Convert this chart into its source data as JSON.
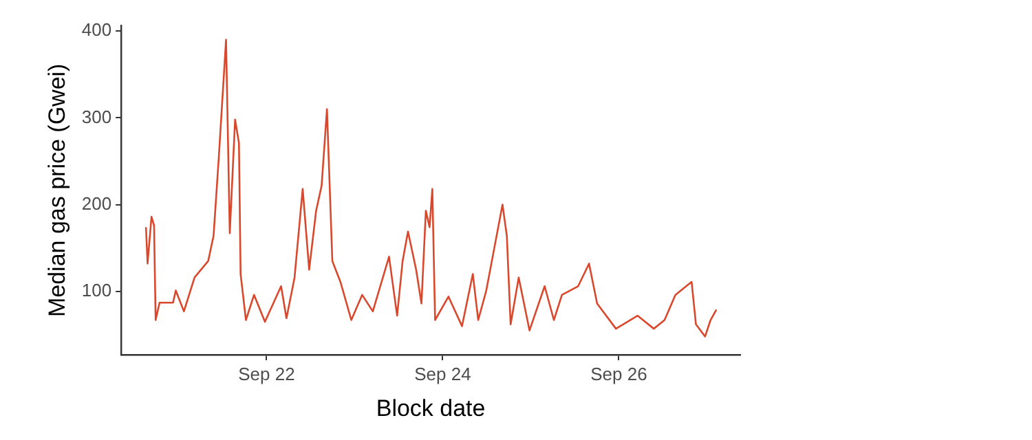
{
  "chart_data": {
    "type": "line",
    "xlabel": "Block date",
    "ylabel": "Median gas price (Gwei)",
    "xlim": [
      "--09-20T08:24",
      "--09-27T09:06"
    ],
    "xticks": [
      {
        "value": "--09-22",
        "label": "Sep 22"
      },
      {
        "value": "--09-24",
        "label": "Sep 24"
      },
      {
        "value": "--09-26",
        "label": "Sep 26"
      }
    ],
    "ylim": [
      27,
      406
    ],
    "yticks": [
      100,
      200,
      300,
      400
    ],
    "series": [
      {
        "color": "#d9482c",
        "x": [
          "--09-20T15:09",
          "--09-20T15:35",
          "--09-20T16:39",
          "--09-20T17:21",
          "--09-20T17:47",
          "--09-20T18:51",
          "--09-20T22:31",
          "--09-20T23:16",
          "--09-21T01:29",
          "--09-21T04:23",
          "--09-21T08:06",
          "--09-21T09:34",
          "--09-21T11:01",
          "--09-21T12:58",
          "--09-21T13:59",
          "--09-21T15:26",
          "--09-21T16:29",
          "--09-21T16:56",
          "--09-21T18:23",
          "--09-21T20:36",
          "--09-21T23:34",
          "--09-22T03:58",
          "--09-22T05:26",
          "--09-22T07:38",
          "--09-22T09:51",
          "--09-22T11:37",
          "--09-22T13:31",
          "--09-22T15:01",
          "--09-22T16:28",
          "--09-22T17:56",
          "--09-22T20:08",
          "--09-22T23:06",
          "--09-23T02:03",
          "--09-23T04:58",
          "--09-23T09:23",
          "--09-23T11:35",
          "--09-23T13:05",
          "--09-23T14:33",
          "--09-23T16:46",
          "--09-23T18:13",
          "--09-23T19:25",
          "--09-23T20:26",
          "--09-23T21:11",
          "--09-23T21:56",
          "--09-24T01:35",
          "--09-24T05:16",
          "--09-24T08:13",
          "--09-24T09:41",
          "--09-24T11:53",
          "--09-24T16:18",
          "--09-24T17:29",
          "--09-24T18:31",
          "--09-24T20:43",
          "--09-24T23:40",
          "--09-25T03:47",
          "--09-25T06:18",
          "--09-25T08:30",
          "--09-25T12:55",
          "--09-25T15:53",
          "--09-25T18:05",
          "--09-25T23:13",
          "--09-26T05:08",
          "--09-26T09:32",
          "--09-26T12:28",
          "--09-26T15:25",
          "--09-26T18:22",
          "--09-26T19:50",
          "--09-26T21:01",
          "--09-26T23:30",
          "--09-27T01:00",
          "--09-27T02:35"
        ],
        "values": [
          174,
          132,
          186,
          176,
          67,
          87,
          87,
          101,
          77,
          116,
          135,
          164,
          256,
          390,
          167,
          298,
          271,
          120,
          67,
          96,
          65,
          106,
          69,
          116,
          218,
          125,
          193,
          222,
          310,
          135,
          111,
          67,
          96,
          77,
          140,
          72,
          135,
          169,
          125,
          86,
          193,
          174,
          218,
          67,
          94,
          60,
          120,
          67,
          101,
          200,
          164,
          62,
          116,
          55,
          106,
          67,
          96,
          106,
          132,
          86,
          57,
          72,
          57,
          67,
          96,
          106,
          111,
          62,
          48,
          67,
          79
        ]
      }
    ]
  }
}
